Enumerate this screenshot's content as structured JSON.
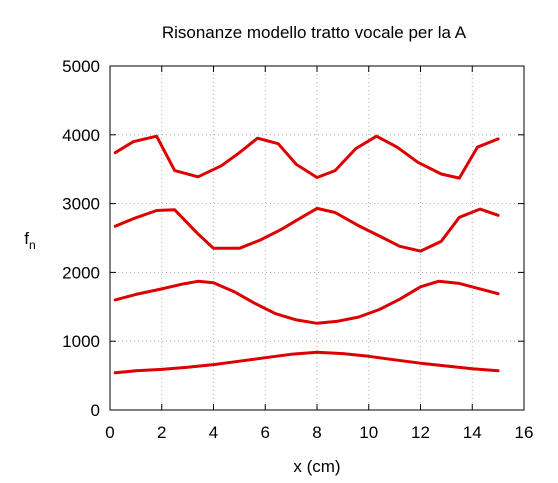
{
  "chart_data": {
    "type": "line",
    "title": "Risonanze modello tratto vocale per la A",
    "xlabel": "x (cm)",
    "ylabel_main": "f",
    "ylabel_sub": "n",
    "xlim": [
      0,
      16
    ],
    "ylim": [
      0,
      5000
    ],
    "xticks": [
      0,
      2,
      4,
      6,
      8,
      10,
      12,
      14,
      16
    ],
    "yticks": [
      0,
      1000,
      2000,
      3000,
      4000,
      5000
    ],
    "grid": true,
    "legend": "none",
    "series_color": "#dd0000",
    "series": [
      {
        "x": [
          0.2,
          0.9,
          1.8,
          2.5,
          3.4,
          4.3,
          5.0,
          5.7,
          6.5,
          7.2,
          8.0,
          8.7,
          9.5,
          10.3,
          11.1,
          11.9,
          12.8,
          13.5,
          14.2,
          15.0
        ],
        "values": [
          3740,
          3900,
          3980,
          3480,
          3390,
          3550,
          3740,
          3950,
          3870,
          3570,
          3380,
          3480,
          3800,
          3980,
          3820,
          3600,
          3430,
          3370,
          3820,
          3940
        ]
      },
      {
        "x": [
          0.2,
          0.9,
          1.8,
          2.5,
          3.4,
          4.0,
          5.0,
          5.8,
          6.6,
          7.4,
          8.0,
          8.7,
          9.6,
          10.4,
          11.2,
          12.0,
          12.8,
          13.5,
          14.3,
          15.0
        ],
        "values": [
          2670,
          2780,
          2900,
          2910,
          2560,
          2350,
          2350,
          2470,
          2620,
          2800,
          2930,
          2870,
          2680,
          2530,
          2380,
          2310,
          2450,
          2800,
          2920,
          2830
        ]
      },
      {
        "x": [
          0.2,
          1.0,
          2.0,
          2.8,
          3.4,
          4.0,
          4.8,
          5.6,
          6.4,
          7.2,
          8.0,
          8.8,
          9.6,
          10.4,
          11.2,
          12.0,
          12.7,
          13.5,
          14.3,
          15.0
        ],
        "values": [
          1600,
          1680,
          1760,
          1830,
          1870,
          1850,
          1720,
          1550,
          1400,
          1310,
          1260,
          1290,
          1350,
          1460,
          1610,
          1790,
          1870,
          1840,
          1760,
          1690
        ]
      },
      {
        "x": [
          0.2,
          1.0,
          2.0,
          3.0,
          4.0,
          5.0,
          6.0,
          7.0,
          8.0,
          9.0,
          10.0,
          11.0,
          12.0,
          13.0,
          14.0,
          15.0
        ],
        "values": [
          540,
          570,
          590,
          620,
          660,
          710,
          760,
          810,
          840,
          820,
          780,
          730,
          680,
          640,
          600,
          570
        ]
      }
    ]
  }
}
